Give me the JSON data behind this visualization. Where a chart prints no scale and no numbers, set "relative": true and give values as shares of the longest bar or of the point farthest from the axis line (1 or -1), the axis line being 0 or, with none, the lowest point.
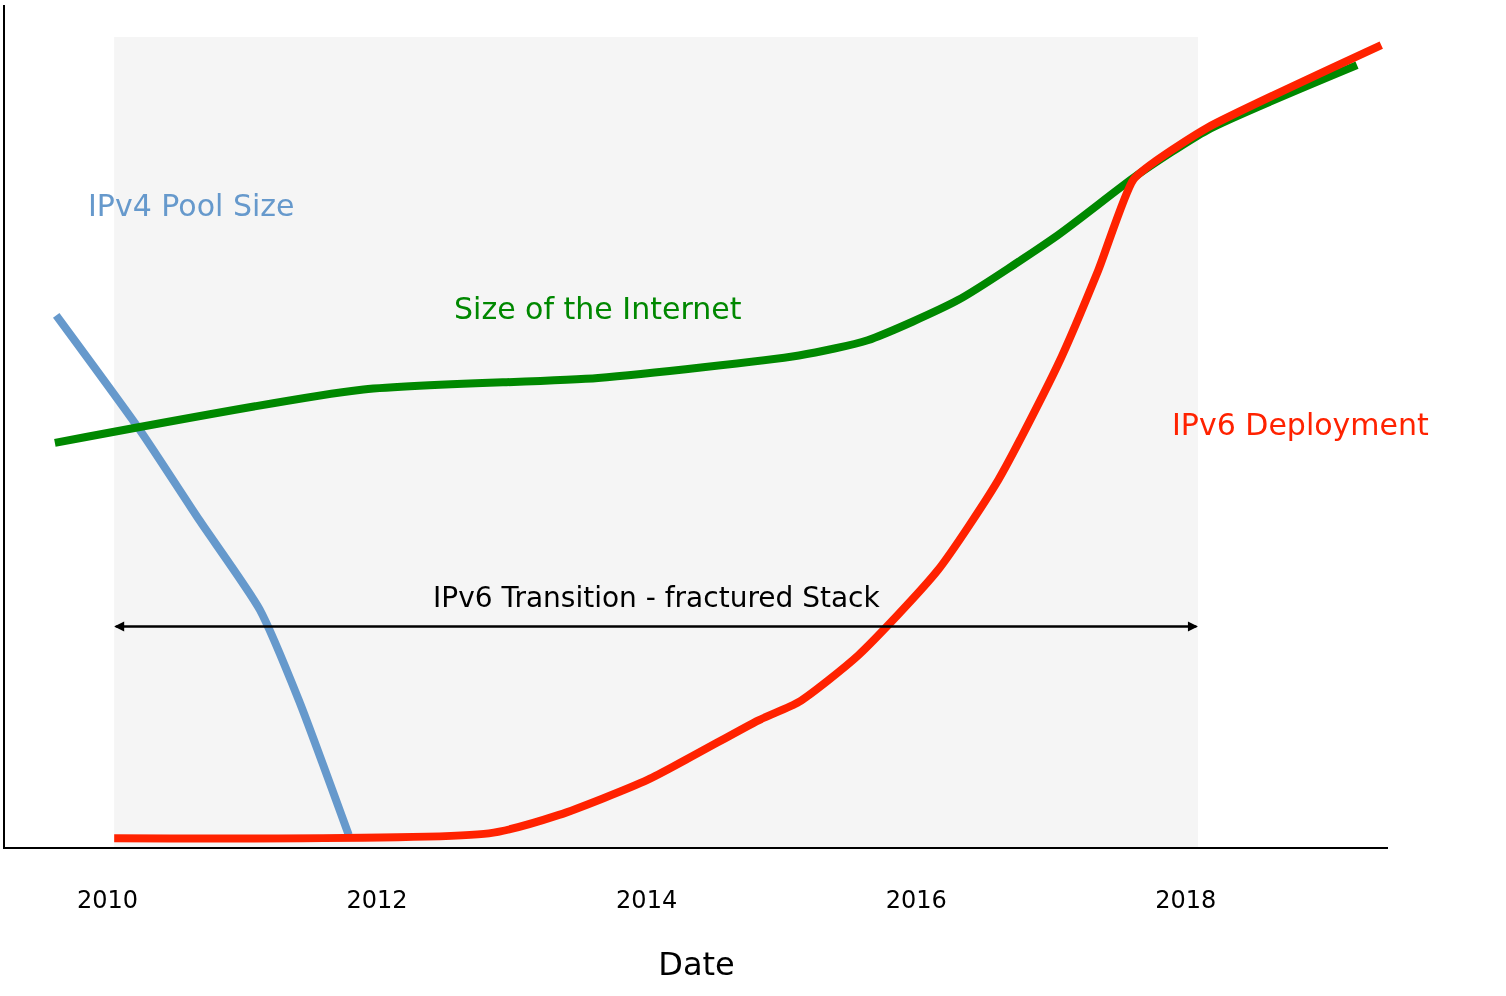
{
  "chart_data": {
    "type": "line",
    "relative": true,
    "xlabel": "Date",
    "xlim": [
      2009.24,
      2019.5
    ],
    "xticks": [
      2010,
      2012,
      2014,
      2016,
      2018
    ],
    "grid": false,
    "legend": false,
    "line_style": "solid",
    "marker": "none",
    "bands": [
      {
        "axis": "x",
        "from": 2010.05,
        "to": 2018.09,
        "label": "IPv6 Transition - fractured Stack",
        "color": "#f5f5f5"
      }
    ],
    "series": [
      {
        "name": "IPv4 Pool Size",
        "color": "#6699cc",
        "x": [
          2009.62,
          2010.24,
          2010.68,
          2011.13,
          2011.42,
          2011.79
        ],
        "values": [
          0.663,
          0.52,
          0.408,
          0.296,
          0.183,
          0.015
        ]
      },
      {
        "name": "Size of the Internet",
        "color": "#008800",
        "x": [
          2009.61,
          2011.87,
          2013.64,
          2015.13,
          2015.64,
          2016.31,
          2017.05,
          2017.64,
          2018.16,
          2019.27
        ],
        "values": [
          0.504,
          0.57,
          0.585,
          0.613,
          0.632,
          0.682,
          0.763,
          0.838,
          0.894,
          0.975
        ]
      },
      {
        "name": "IPv6 Deployment",
        "color": "#ff2200",
        "x": [
          2010.05,
          2012.83,
          2013.35,
          2014.01,
          2014.83,
          2015.13,
          2015.57,
          2016.16,
          2016.61,
          2017.05,
          2017.35,
          2017.61,
          2017.79,
          2018.16,
          2019.45
        ],
        "values": [
          0.011,
          0.017,
          0.04,
          0.084,
          0.158,
          0.181,
          0.239,
          0.345,
          0.458,
          0.601,
          0.719,
          0.832,
          0.857,
          0.897,
          1.0
        ]
      }
    ]
  }
}
